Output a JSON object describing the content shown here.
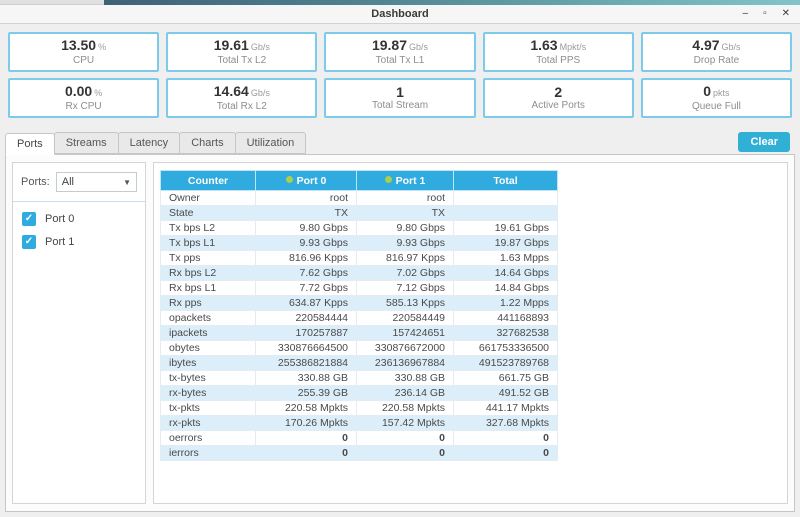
{
  "window": {
    "title": "Dashboard",
    "controls": {
      "minimize": "–",
      "maximize": "▫",
      "close": "✕"
    }
  },
  "colors": {
    "accent": "#2fabe0",
    "accent-btn": "#31b0d5",
    "card-border": "#7ccbea",
    "alt-row": "#dbeef9",
    "good-green": "#21ba45",
    "port-dot": "#a9cf4c"
  },
  "stats": {
    "row1": [
      {
        "value": "13.50",
        "unit": "%",
        "label": "CPU"
      },
      {
        "value": "19.61",
        "unit": "Gb/s",
        "label": "Total Tx L2"
      },
      {
        "value": "19.87",
        "unit": "Gb/s",
        "label": "Total Tx L1"
      },
      {
        "value": "1.63",
        "unit": "Mpkt/s",
        "label": "Total PPS"
      },
      {
        "value": "4.97",
        "unit": "Gb/s",
        "label": "Drop Rate"
      }
    ],
    "row2": [
      {
        "value": "0.00",
        "unit": "%",
        "label": "Rx CPU"
      },
      {
        "value": "14.64",
        "unit": "Gb/s",
        "label": "Total Rx L2"
      },
      {
        "value": "1",
        "unit": "",
        "label": "Total Stream"
      },
      {
        "value": "2",
        "unit": "",
        "label": "Active Ports"
      },
      {
        "value": "0",
        "unit": "pkts",
        "label": "Queue Full"
      }
    ]
  },
  "tabs": {
    "items": [
      "Ports",
      "Streams",
      "Latency",
      "Charts",
      "Utilization"
    ],
    "active": "Ports",
    "clear_label": "Clear"
  },
  "sidebar": {
    "filter_label": "Ports:",
    "filter_value": "All",
    "ports": [
      {
        "label": "Port 0",
        "checked": true
      },
      {
        "label": "Port 1",
        "checked": true
      }
    ]
  },
  "table": {
    "columns": [
      {
        "label": "Counter",
        "dot": false
      },
      {
        "label": "Port 0",
        "dot": true
      },
      {
        "label": "Port 1",
        "dot": true
      },
      {
        "label": "Total",
        "dot": false
      }
    ],
    "rows": [
      {
        "counter": "Owner",
        "port0": "root",
        "port1": "root",
        "total": "",
        "green": false
      },
      {
        "counter": "State",
        "port0": "TX",
        "port1": "TX",
        "total": "",
        "green": false
      },
      {
        "counter": "Tx bps L2",
        "port0": "9.80 Gbps",
        "port1": "9.80 Gbps",
        "total": "19.61 Gbps",
        "green": false
      },
      {
        "counter": "Tx bps L1",
        "port0": "9.93 Gbps",
        "port1": "9.93 Gbps",
        "total": "19.87 Gbps",
        "green": false
      },
      {
        "counter": "Tx pps",
        "port0": "816.96 Kpps",
        "port1": "816.97 Kpps",
        "total": "1.63 Mpps",
        "green": false
      },
      {
        "counter": "Rx bps L2",
        "port0": "7.62 Gbps",
        "port1": "7.02 Gbps",
        "total": "14.64 Gbps",
        "green": false
      },
      {
        "counter": "Rx bps L1",
        "port0": "7.72 Gbps",
        "port1": "7.12 Gbps",
        "total": "14.84 Gbps",
        "green": false
      },
      {
        "counter": "Rx pps",
        "port0": "634.87 Kpps",
        "port1": "585.13 Kpps",
        "total": "1.22 Mpps",
        "green": false
      },
      {
        "counter": "opackets",
        "port0": "220584444",
        "port1": "220584449",
        "total": "441168893",
        "green": false
      },
      {
        "counter": "ipackets",
        "port0": "170257887",
        "port1": "157424651",
        "total": "327682538",
        "green": false
      },
      {
        "counter": "obytes",
        "port0": "330876664500",
        "port1": "330876672000",
        "total": "661753336500",
        "green": false
      },
      {
        "counter": "ibytes",
        "port0": "255386821884",
        "port1": "236136967884",
        "total": "491523789768",
        "green": false
      },
      {
        "counter": "tx-bytes",
        "port0": "330.88 GB",
        "port1": "330.88 GB",
        "total": "661.75 GB",
        "green": false
      },
      {
        "counter": "rx-bytes",
        "port0": "255.39 GB",
        "port1": "236.14 GB",
        "total": "491.52 GB",
        "green": false
      },
      {
        "counter": "tx-pkts",
        "port0": "220.58 Mpkts",
        "port1": "220.58 Mpkts",
        "total": "441.17 Mpkts",
        "green": false
      },
      {
        "counter": "rx-pkts",
        "port0": "170.26 Mpkts",
        "port1": "157.42 Mpkts",
        "total": "327.68 Mpkts",
        "green": false
      },
      {
        "counter": "oerrors",
        "port0": "0",
        "port1": "0",
        "total": "0",
        "green": true
      },
      {
        "counter": "ierrors",
        "port0": "0",
        "port1": "0",
        "total": "0",
        "green": true
      }
    ]
  }
}
